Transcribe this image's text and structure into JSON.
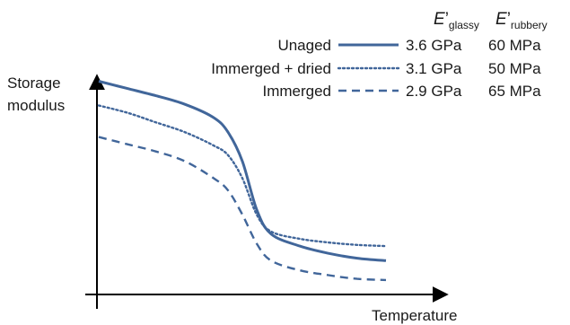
{
  "chart_data": {
    "type": "line",
    "title": "",
    "xlabel": "Temperature",
    "ylabel": [
      "Storage",
      "modulus"
    ],
    "grid": false,
    "ticks": false,
    "legend_placement": "top-right",
    "legend_header": {
      "col1_main": "E",
      "col1_prime": "’",
      "col1_sub": "glassy",
      "col2_main": "E",
      "col2_prime": "’",
      "col2_sub": "rubbery"
    },
    "x": [
      0,
      10,
      20,
      30,
      40,
      45,
      50,
      55,
      60,
      70,
      80,
      90,
      100
    ],
    "series": [
      {
        "name": "Unaged",
        "style": "solid",
        "color": "#41669a",
        "e_glassy": "3.6 GPa",
        "e_rubbery": "60 MPa",
        "values": [
          0.85,
          0.82,
          0.79,
          0.755,
          0.7,
          0.64,
          0.52,
          0.32,
          0.22,
          0.17,
          0.14,
          0.12,
          0.11
        ]
      },
      {
        "name": "Immerged + dried",
        "style": "dotted",
        "color": "#41669a",
        "e_glassy": "3.1 GPa",
        "e_rubbery": "50 MPa",
        "values": [
          0.75,
          0.72,
          0.68,
          0.64,
          0.585,
          0.545,
          0.45,
          0.3,
          0.23,
          0.2,
          0.185,
          0.175,
          0.17
        ]
      },
      {
        "name": "Immerged",
        "style": "dashed",
        "color": "#41669a",
        "e_glassy": "2.9 GPa",
        "e_rubbery": "65 MPa",
        "values": [
          0.62,
          0.59,
          0.56,
          0.52,
          0.45,
          0.4,
          0.3,
          0.18,
          0.11,
          0.07,
          0.05,
          0.035,
          0.03
        ]
      }
    ]
  }
}
